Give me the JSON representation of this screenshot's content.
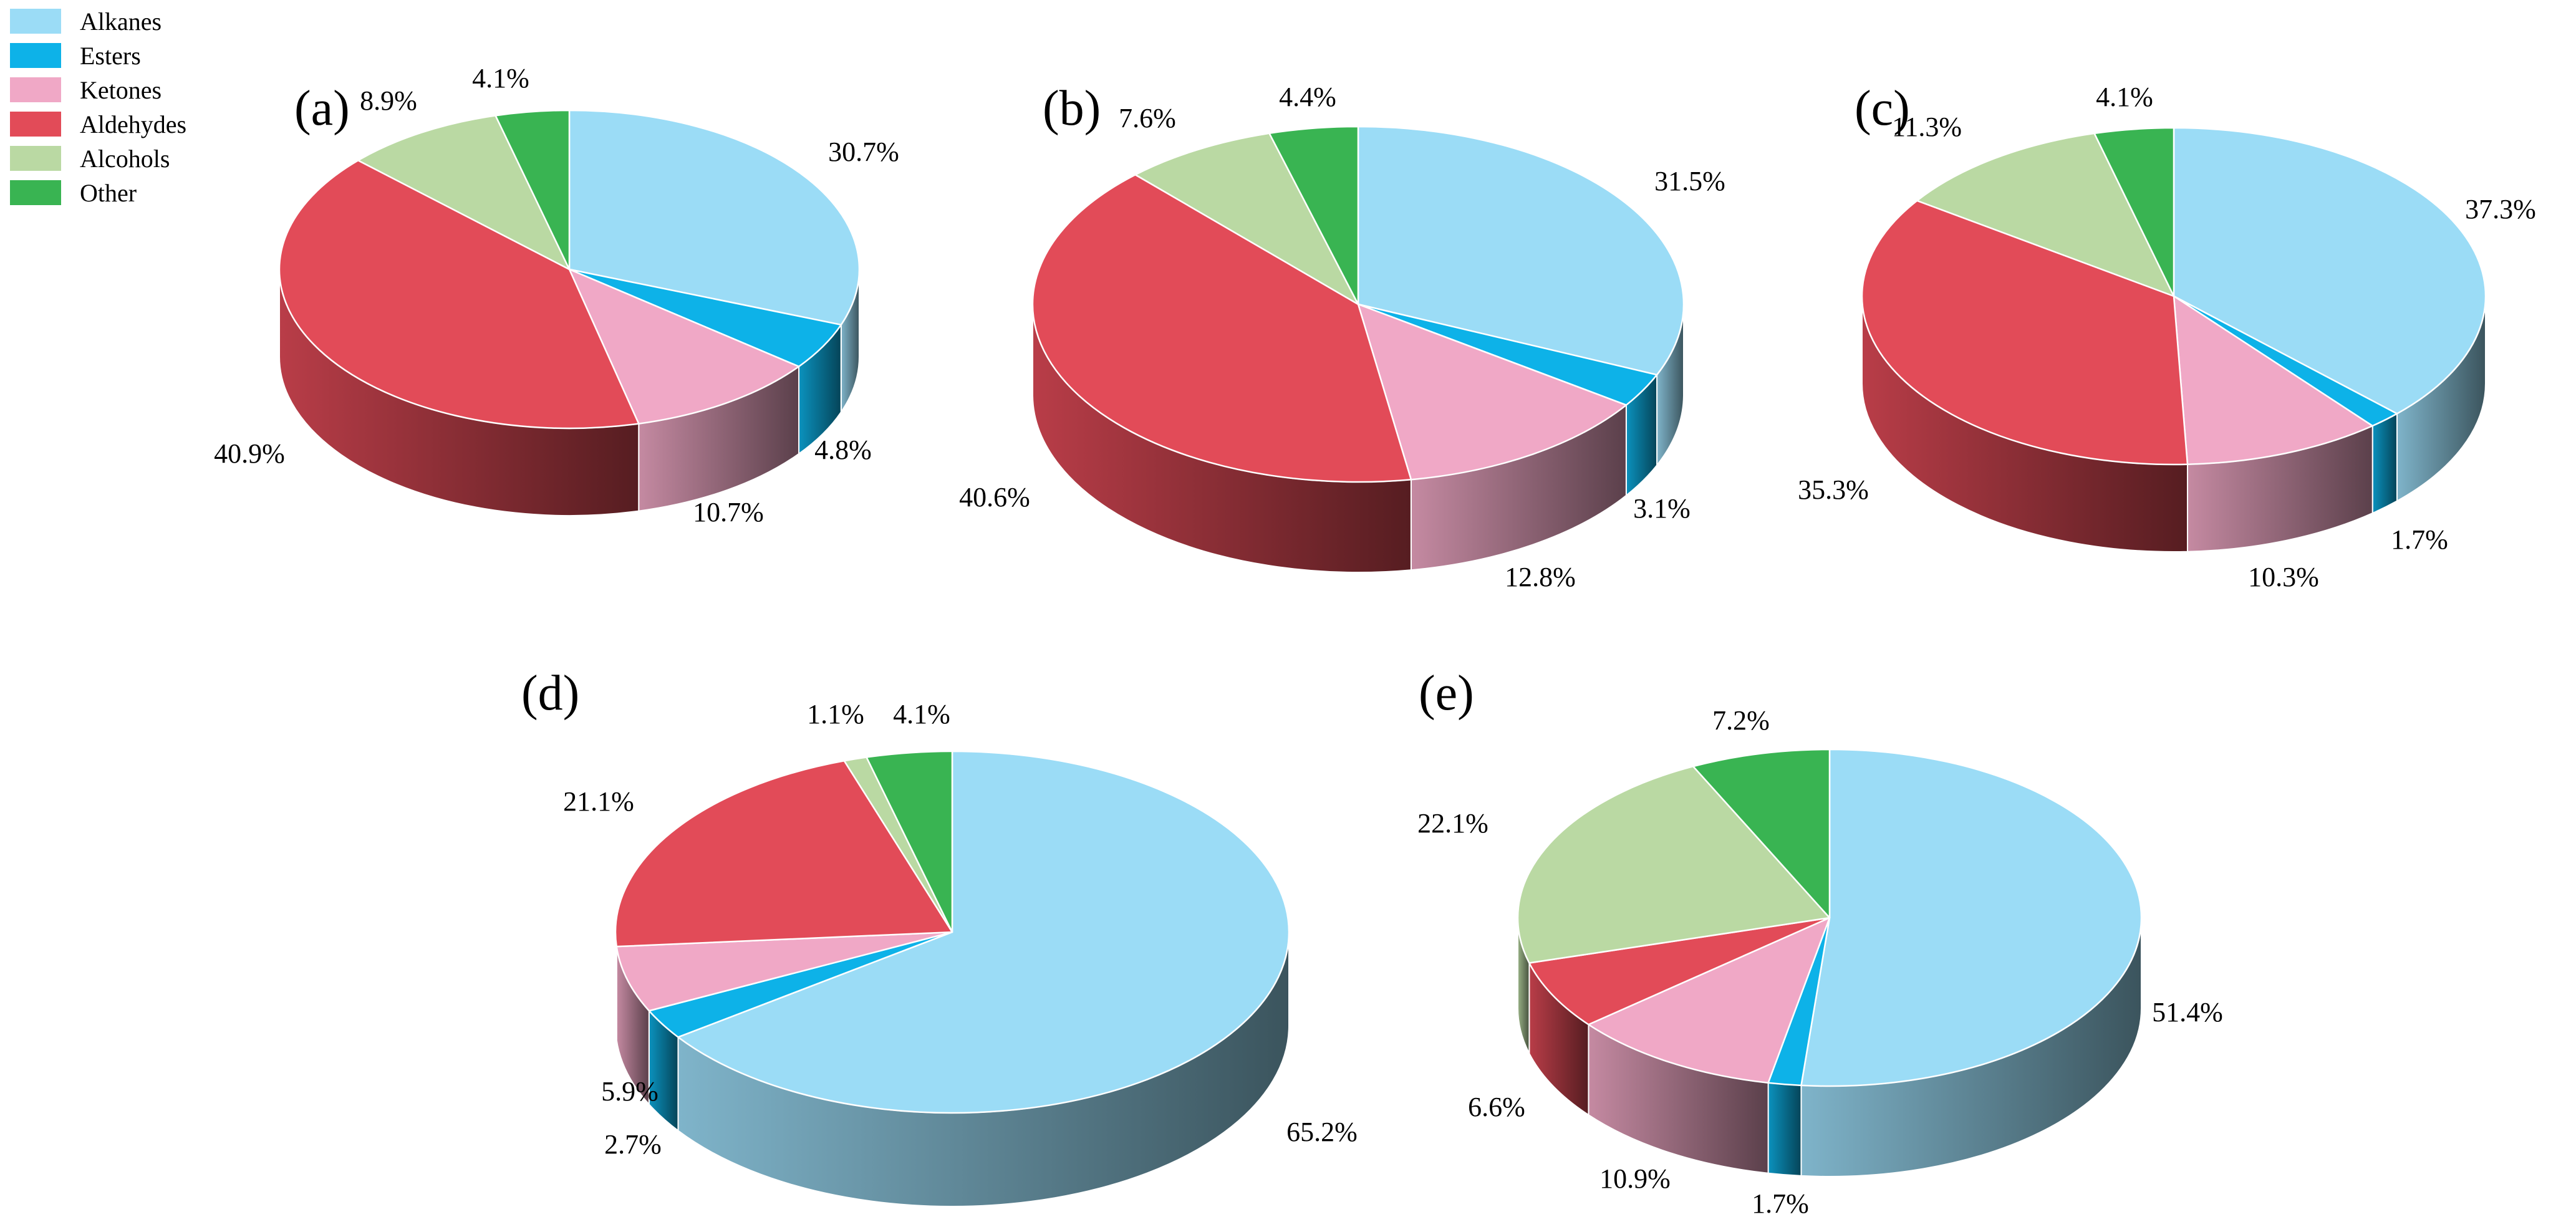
{
  "categories": [
    "Alkanes",
    "Esters",
    "Ketones",
    "Aldehydes",
    "Alcohols",
    "Other"
  ],
  "colors": {
    "Alkanes": "#9bdcf6",
    "Esters": "#0db2e8",
    "Ketones": "#f0a8c6",
    "Aldehydes": "#e24b58",
    "Alcohols": "#bad9a3",
    "Other": "#39b452"
  },
  "chart_data": [
    {
      "type": "pie",
      "panel": "(a)",
      "categories": [
        "Alkanes",
        "Esters",
        "Ketones",
        "Aldehydes",
        "Alcohols",
        "Other"
      ],
      "values": [
        30.7,
        4.8,
        10.7,
        40.9,
        8.9,
        4.1
      ],
      "labels": [
        "30.7%",
        "4.8%",
        "10.7%",
        "40.9%",
        "8.9%",
        "4.1%"
      ],
      "legend": "top-left"
    },
    {
      "type": "pie",
      "panel": "(b)",
      "categories": [
        "Alkanes",
        "Esters",
        "Ketones",
        "Aldehydes",
        "Alcohols",
        "Other"
      ],
      "values": [
        31.5,
        3.1,
        12.8,
        40.6,
        7.6,
        4.4
      ],
      "labels": [
        "31.5%",
        "3.1%",
        "12.8%",
        "40.6%",
        "7.6%",
        "4.4%"
      ]
    },
    {
      "type": "pie",
      "panel": "(c)",
      "categories": [
        "Alkanes",
        "Esters",
        "Ketones",
        "Aldehydes",
        "Alcohols",
        "Other"
      ],
      "values": [
        37.3,
        1.7,
        10.3,
        35.3,
        11.3,
        4.1
      ],
      "labels": [
        "37.3%",
        "1.7%",
        "10.3%",
        "35.3%",
        "11.3%",
        "4.1%"
      ]
    },
    {
      "type": "pie",
      "panel": "(d)",
      "categories": [
        "Alkanes",
        "Esters",
        "Ketones",
        "Aldehydes",
        "Alcohols",
        "Other"
      ],
      "values": [
        65.2,
        2.7,
        5.9,
        21.1,
        1.1,
        4.1
      ],
      "labels": [
        "65.2%",
        "2.7%",
        "5.9%",
        "21.1%",
        "1.1%",
        "4.1%"
      ]
    },
    {
      "type": "pie",
      "panel": "(e)",
      "categories": [
        "Alkanes",
        "Esters",
        "Ketones",
        "Aldehydes",
        "Alcohols",
        "Other"
      ],
      "values": [
        51.4,
        1.7,
        10.9,
        6.6,
        22.1,
        7.2
      ],
      "labels": [
        "51.4%",
        "1.7%",
        "10.9%",
        "6.6%",
        "22.1%",
        "7.2%"
      ]
    }
  ]
}
